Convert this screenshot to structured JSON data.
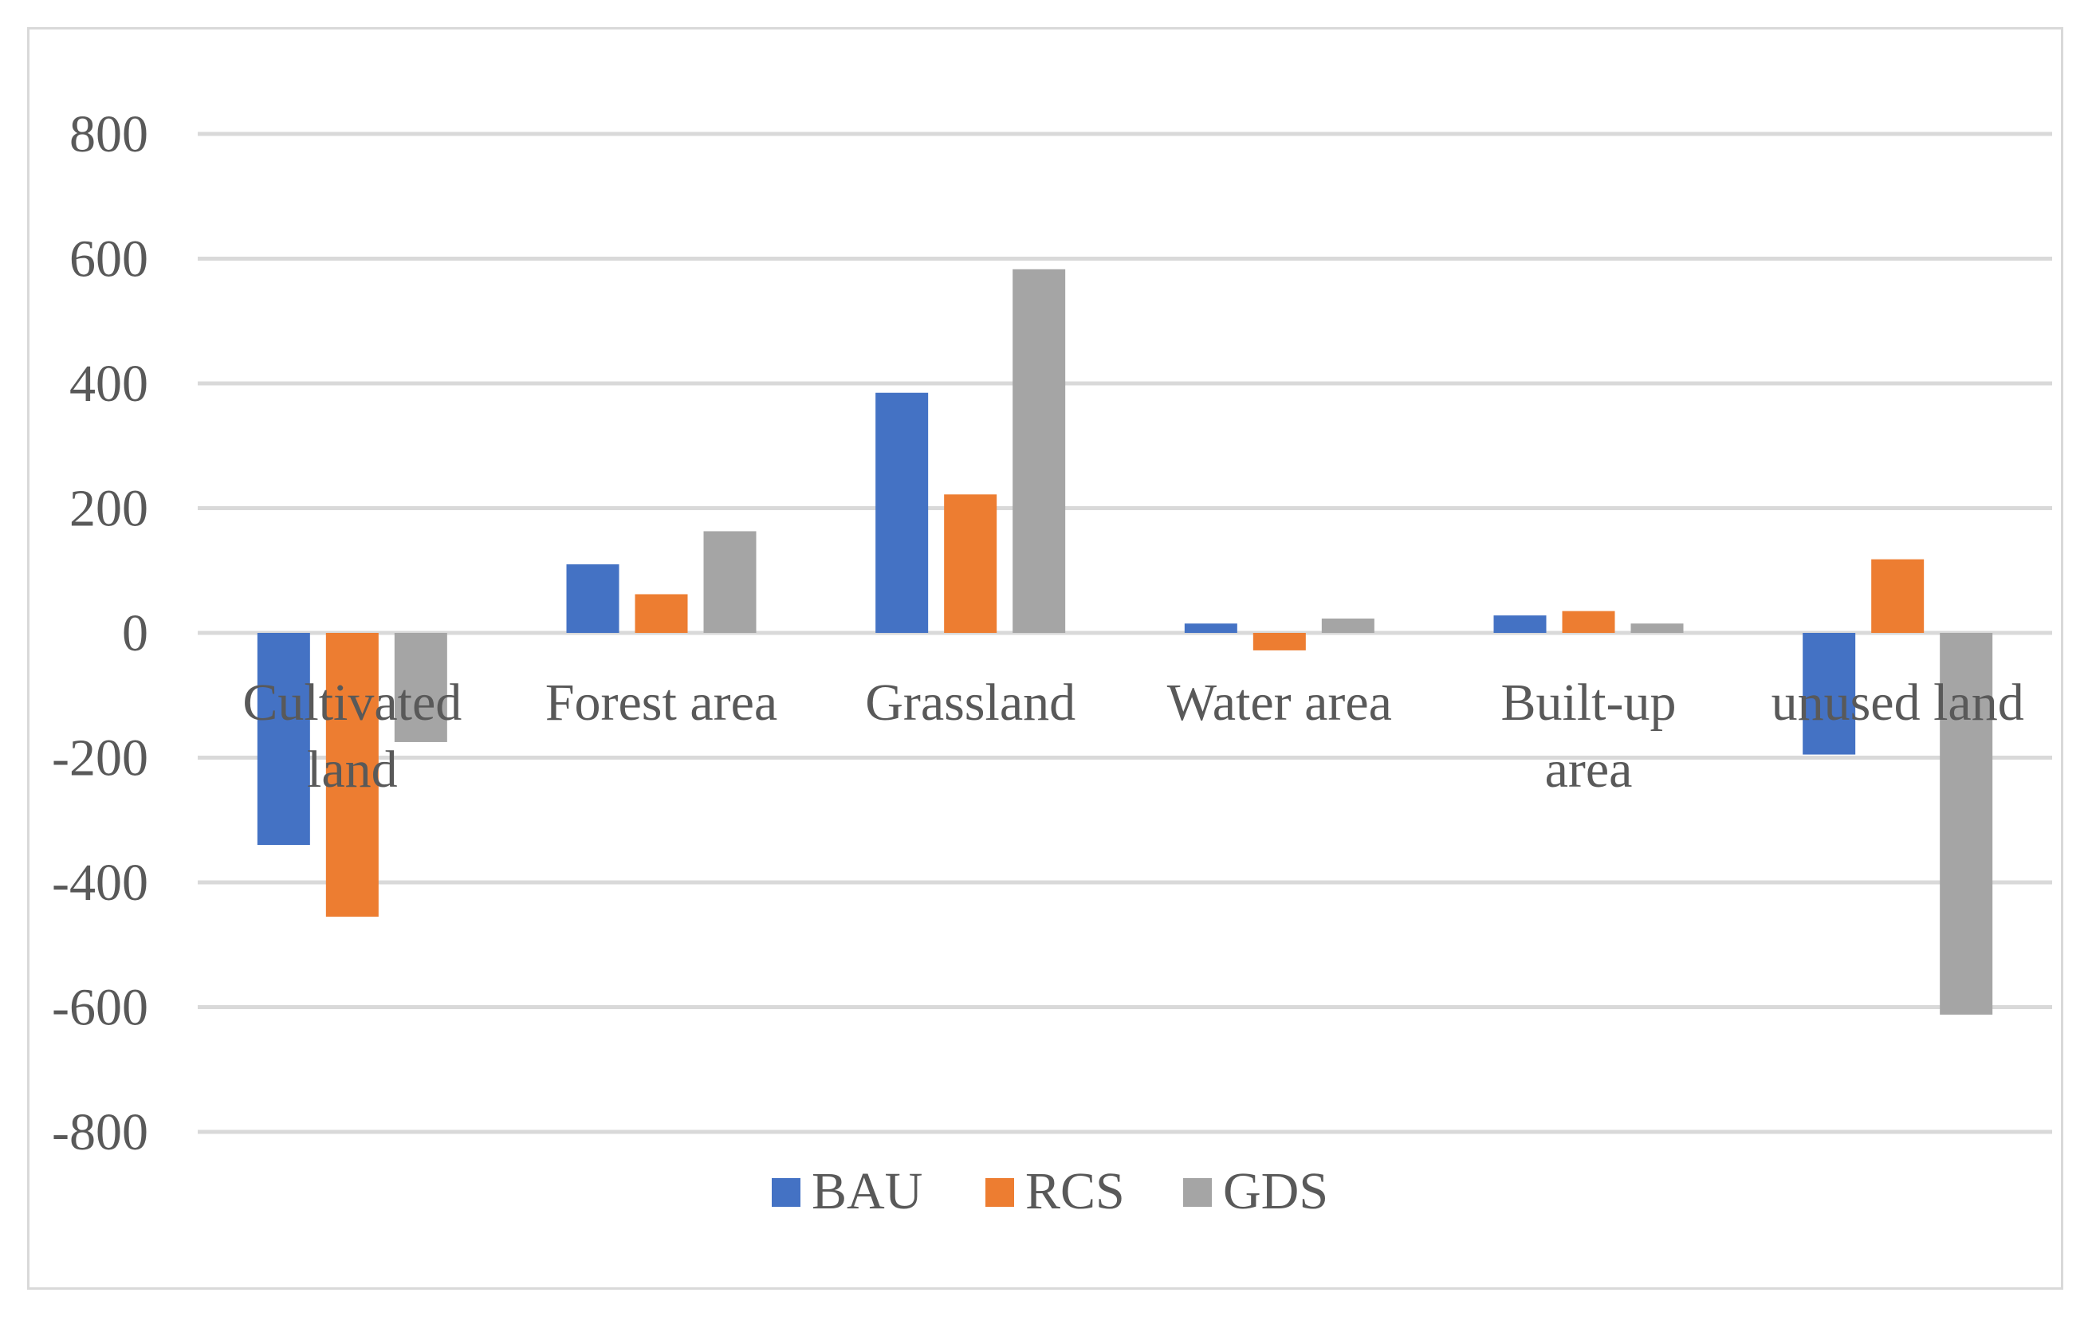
{
  "chart_data": {
    "type": "bar",
    "title": "",
    "xlabel": "",
    "ylabel": "",
    "ylim": [
      -800,
      800
    ],
    "yticks": [
      800,
      600,
      400,
      200,
      0,
      -200,
      -400,
      -600,
      -800
    ],
    "ytick_labels": [
      "800",
      "600",
      "400",
      "200",
      "0",
      "-200",
      "-400",
      "-600",
      "-800"
    ],
    "categories": [
      [
        "Cultivated",
        "land"
      ],
      [
        "Forest area"
      ],
      [
        "Grassland"
      ],
      [
        "Water area"
      ],
      [
        "Built-up",
        "area"
      ],
      [
        "unused land"
      ]
    ],
    "series": [
      {
        "name": "BAU",
        "color": "#4472c4",
        "values": [
          -340,
          110,
          385,
          15,
          28,
          -195
        ]
      },
      {
        "name": "RCS",
        "color": "#ed7d31",
        "values": [
          -455,
          62,
          222,
          -28,
          35,
          118
        ]
      },
      {
        "name": "GDS",
        "color": "#a5a5a5",
        "values": [
          -175,
          163,
          583,
          23,
          15,
          -612
        ]
      }
    ],
    "grid": true,
    "legend": "bottom"
  }
}
